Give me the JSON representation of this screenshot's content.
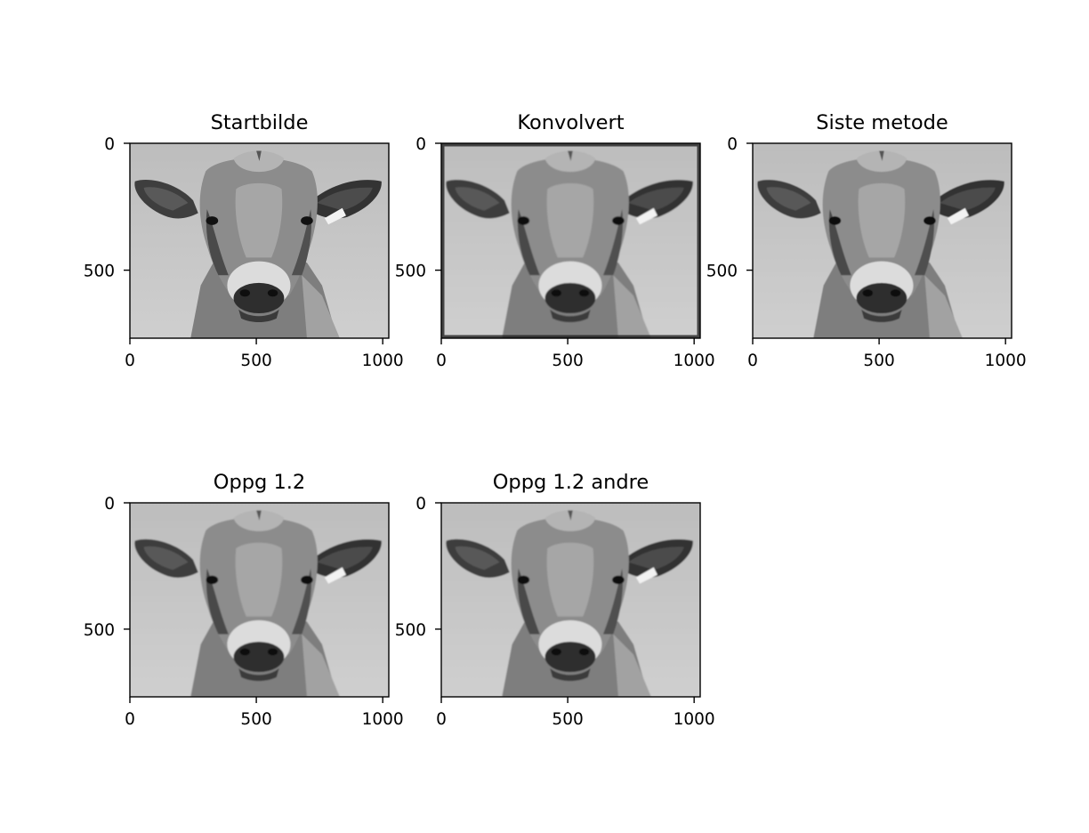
{
  "chart_data": [
    {
      "type": "image",
      "title": "Startbilde",
      "image_content": "grayscale cow face",
      "blur": "none",
      "xlim": [
        0,
        1024
      ],
      "ylim": [
        768,
        0
      ],
      "xticks": [
        0,
        500,
        1000
      ],
      "yticks": [
        0,
        500
      ],
      "xlabel": "",
      "ylabel": ""
    },
    {
      "type": "image",
      "title": "Konvolvert",
      "image_content": "grayscale cow face",
      "blur": "strong",
      "dark_border": true,
      "xlim": [
        0,
        1024
      ],
      "ylim": [
        768,
        0
      ],
      "xticks": [
        0,
        500,
        1000
      ],
      "yticks": [
        0,
        500
      ],
      "xlabel": "",
      "ylabel": ""
    },
    {
      "type": "image",
      "title": "Siste metode",
      "image_content": "grayscale cow face",
      "blur": "medium",
      "xlim": [
        0,
        1024
      ],
      "ylim": [
        768,
        0
      ],
      "xticks": [
        0,
        500,
        1000
      ],
      "yticks": [
        0,
        500
      ],
      "xlabel": "",
      "ylabel": ""
    },
    {
      "type": "image",
      "title": "Oppg 1.2",
      "image_content": "grayscale cow face",
      "blur": "strong",
      "xlim": [
        0,
        1024
      ],
      "ylim": [
        768,
        0
      ],
      "xticks": [
        0,
        500,
        1000
      ],
      "yticks": [
        0,
        500
      ],
      "xlabel": "",
      "ylabel": ""
    },
    {
      "type": "image",
      "title": "Oppg 1.2 andre",
      "image_content": "grayscale cow face",
      "blur": "strong",
      "xlim": [
        0,
        1024
      ],
      "ylim": [
        768,
        0
      ],
      "xticks": [
        0,
        500,
        1000
      ],
      "yticks": [
        0,
        500
      ],
      "xlabel": "",
      "ylabel": ""
    }
  ]
}
